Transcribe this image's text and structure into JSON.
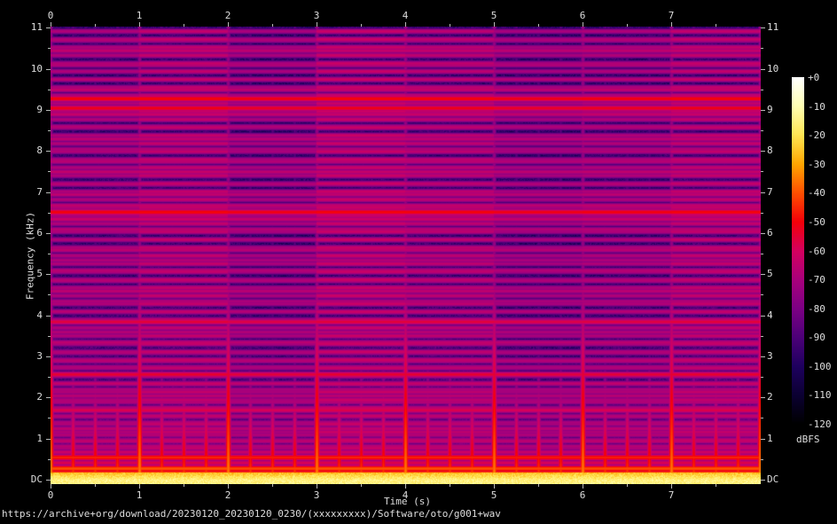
{
  "page": {
    "background": "#000000",
    "text_color": "#dedede"
  },
  "footer": {
    "url": "https://archive+org/download/20230120_20230120_0230/(xxxxxxxxx)/Software/oto/g001+wav"
  },
  "chart_data": {
    "type": "heatmap",
    "subtype": "audio-spectrogram",
    "title": "",
    "xlabel": "Time (s)",
    "ylabel": "Frequency (kHz)",
    "colorbar_label": "dBFS",
    "x_range_s": [
      0,
      8.01
    ],
    "y_range_khz": [
      0,
      11.025
    ],
    "db_range": [
      0,
      -120
    ],
    "grid": false,
    "x_major_ticks": [
      0,
      1,
      2,
      3,
      4,
      5,
      6,
      7
    ],
    "x_minor_step_s": 0.5,
    "y_major_tick_labels": [
      "11",
      "10",
      "9",
      "8",
      "7",
      "6",
      "5",
      "4",
      "3",
      "2",
      "1",
      "DC"
    ],
    "y_major_tick_values_khz": [
      11,
      10,
      9,
      8,
      7,
      6,
      5,
      4,
      3,
      2,
      1,
      0
    ],
    "y_minor_step_khz": 0.5,
    "axes_labeled_on": [
      "top",
      "bottom",
      "left",
      "right"
    ],
    "colorbar_tick_labels": [
      "+0",
      "-10",
      "-20",
      "-30",
      "-40",
      "-50",
      "-60",
      "-70",
      "-80",
      "-90",
      "-100",
      "-110",
      "-120"
    ],
    "colorbar_tick_values_db": [
      0,
      -10,
      -20,
      -30,
      -40,
      -50,
      -60,
      -70,
      -80,
      -90,
      -100,
      -110,
      -120
    ],
    "palette_stops": [
      [
        0,
        "#ffffff"
      ],
      [
        -10,
        "#ffffb2"
      ],
      [
        -20,
        "#ffe552"
      ],
      [
        -30,
        "#ffa500"
      ],
      [
        -40,
        "#ff4f00"
      ],
      [
        -50,
        "#f40009"
      ],
      [
        -60,
        "#d4005f"
      ],
      [
        -70,
        "#a8007c"
      ],
      [
        -80,
        "#7c0084"
      ],
      [
        -90,
        "#4c0078"
      ],
      [
        -100,
        "#1e005e"
      ],
      [
        -110,
        "#0b0032"
      ],
      [
        -120,
        "#000000"
      ]
    ],
    "render": {
      "seed": 42,
      "noise_floor_db": -96.5,
      "low_freq_lift_db": 14,
      "low_freq_lift_decay_khz": 2.8,
      "noise_spread_db": 13,
      "segment_count": 8,
      "seg_bg_offset_db": [
        1.0,
        2.5,
        -1.0,
        2.0,
        1.5,
        -1.5,
        0.0,
        2.0
      ],
      "seg_comb_gain": [
        0.6,
        0.9,
        0.5,
        1.0,
        0.8,
        0.45,
        0.6,
        0.9
      ],
      "comb_spacing_khz": 0.195,
      "comb_peak_db": -66,
      "beat_interval_s": 0.25,
      "beat_int_db0": -33,
      "beat_int_slope_db_per_khz": 8.5,
      "beat_int_cap_db": -74,
      "beat_sub_db0": -40,
      "beat_sub_slope_db_per_khz": 15,
      "beat_sub_cap_db": -88,
      "bottom_band_khz": 0.18,
      "bottom_band_db0": -15,
      "bottom_band_slope": 60,
      "tonal_lines": [
        {
          "khz": 9.28,
          "db": -50
        },
        {
          "khz": 9.05,
          "db": -52
        },
        {
          "khz": 6.52,
          "db": -50
        },
        {
          "khz": 6.35,
          "db": -62
        },
        {
          "khz": 6.68,
          "db": -64
        },
        {
          "khz": 3.85,
          "db": -56
        },
        {
          "khz": 2.57,
          "db": -55
        },
        {
          "khz": 1.7,
          "db": -58
        },
        {
          "khz": 0.55,
          "db": -46
        },
        {
          "khz": 0.28,
          "db": -40
        },
        {
          "khz": 0.15,
          "db": -34
        },
        {
          "khz": 0.42,
          "db": -58
        },
        {
          "khz": 9.5,
          "db": -64
        },
        {
          "khz": 9.75,
          "db": -66
        },
        {
          "khz": 10.1,
          "db": -67
        },
        {
          "khz": 10.45,
          "db": -64
        },
        {
          "khz": 10.7,
          "db": -68
        },
        {
          "khz": 8.9,
          "db": -63
        },
        {
          "khz": 8.6,
          "db": -67
        },
        {
          "khz": 8.3,
          "db": -65
        },
        {
          "khz": 8.05,
          "db": -68
        },
        {
          "khz": 7.75,
          "db": -66
        },
        {
          "khz": 7.5,
          "db": -64
        },
        {
          "khz": 7.2,
          "db": -67
        },
        {
          "khz": 6.95,
          "db": -65
        },
        {
          "khz": 6.1,
          "db": -66
        },
        {
          "khz": 5.85,
          "db": -68
        },
        {
          "khz": 5.6,
          "db": -65
        },
        {
          "khz": 5.35,
          "db": -68
        },
        {
          "khz": 5.1,
          "db": -66
        },
        {
          "khz": 4.85,
          "db": -67
        },
        {
          "khz": 4.6,
          "db": -65
        },
        {
          "khz": 4.35,
          "db": -68
        },
        {
          "khz": 4.1,
          "db": -66
        },
        {
          "khz": 3.6,
          "db": -67
        },
        {
          "khz": 3.35,
          "db": -65
        },
        {
          "khz": 3.1,
          "db": -68
        },
        {
          "khz": 2.9,
          "db": -66
        },
        {
          "khz": 2.75,
          "db": -68
        },
        {
          "khz": 2.35,
          "db": -64
        },
        {
          "khz": 2.2,
          "db": -68
        },
        {
          "khz": 2.05,
          "db": -66
        },
        {
          "khz": 1.9,
          "db": -67
        },
        {
          "khz": 1.55,
          "db": -66
        },
        {
          "khz": 1.4,
          "db": -68
        },
        {
          "khz": 1.25,
          "db": -65
        },
        {
          "khz": 1.1,
          "db": -67
        },
        {
          "khz": 0.95,
          "db": -64
        },
        {
          "khz": 0.82,
          "db": -66
        },
        {
          "khz": 0.68,
          "db": -62
        }
      ]
    }
  }
}
